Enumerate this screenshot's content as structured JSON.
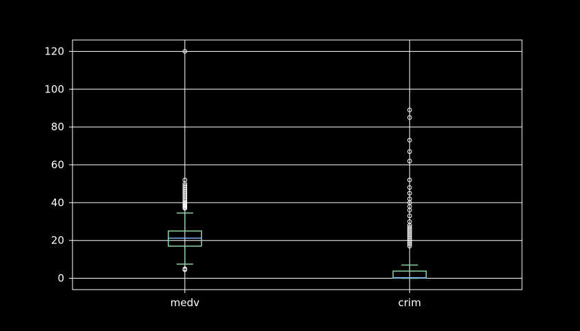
{
  "chart_data": {
    "type": "box",
    "title": "",
    "xlabel": "",
    "ylabel": "",
    "ylim": [
      -6,
      126
    ],
    "yticks": [
      0,
      20,
      40,
      60,
      80,
      100,
      120
    ],
    "grid": true,
    "categories": [
      "medv",
      "crim"
    ],
    "boxes": [
      {
        "name": "medv",
        "whisker_low": 7.5,
        "q1": 17.0,
        "median": 21.2,
        "q3": 25.0,
        "whisker_high": 34.5,
        "outliers": [
          4.5,
          5.0,
          37.0,
          37.5,
          38.0,
          38.5,
          39.0,
          39.5,
          40.0,
          41.0,
          42.0,
          43.0,
          44.0,
          45.0,
          46.0,
          47.0,
          48.0,
          49.0,
          50.0,
          52.0,
          120.0
        ]
      },
      {
        "name": "crim",
        "whisker_low": 0.0,
        "q1": 0.1,
        "median": 0.3,
        "q3": 3.8,
        "whisker_high": 7.0,
        "outliers": [
          17.0,
          18.0,
          19.0,
          20.0,
          21.0,
          22.0,
          23.0,
          24.0,
          25.0,
          26.0,
          27.0,
          28.0,
          30.0,
          33.0,
          36.0,
          38.0,
          40.0,
          42.0,
          45.0,
          48.0,
          52.0,
          62.0,
          67.0,
          73.0,
          85.0,
          89.0
        ]
      }
    ],
    "colors": {
      "background": "#000000",
      "axes": "#ffffff",
      "grid": "#ffffff",
      "box": "#8dd3a5",
      "median": "#7fb6ff",
      "whisker": "#8dd3a5",
      "flier": "#ffffff"
    }
  }
}
